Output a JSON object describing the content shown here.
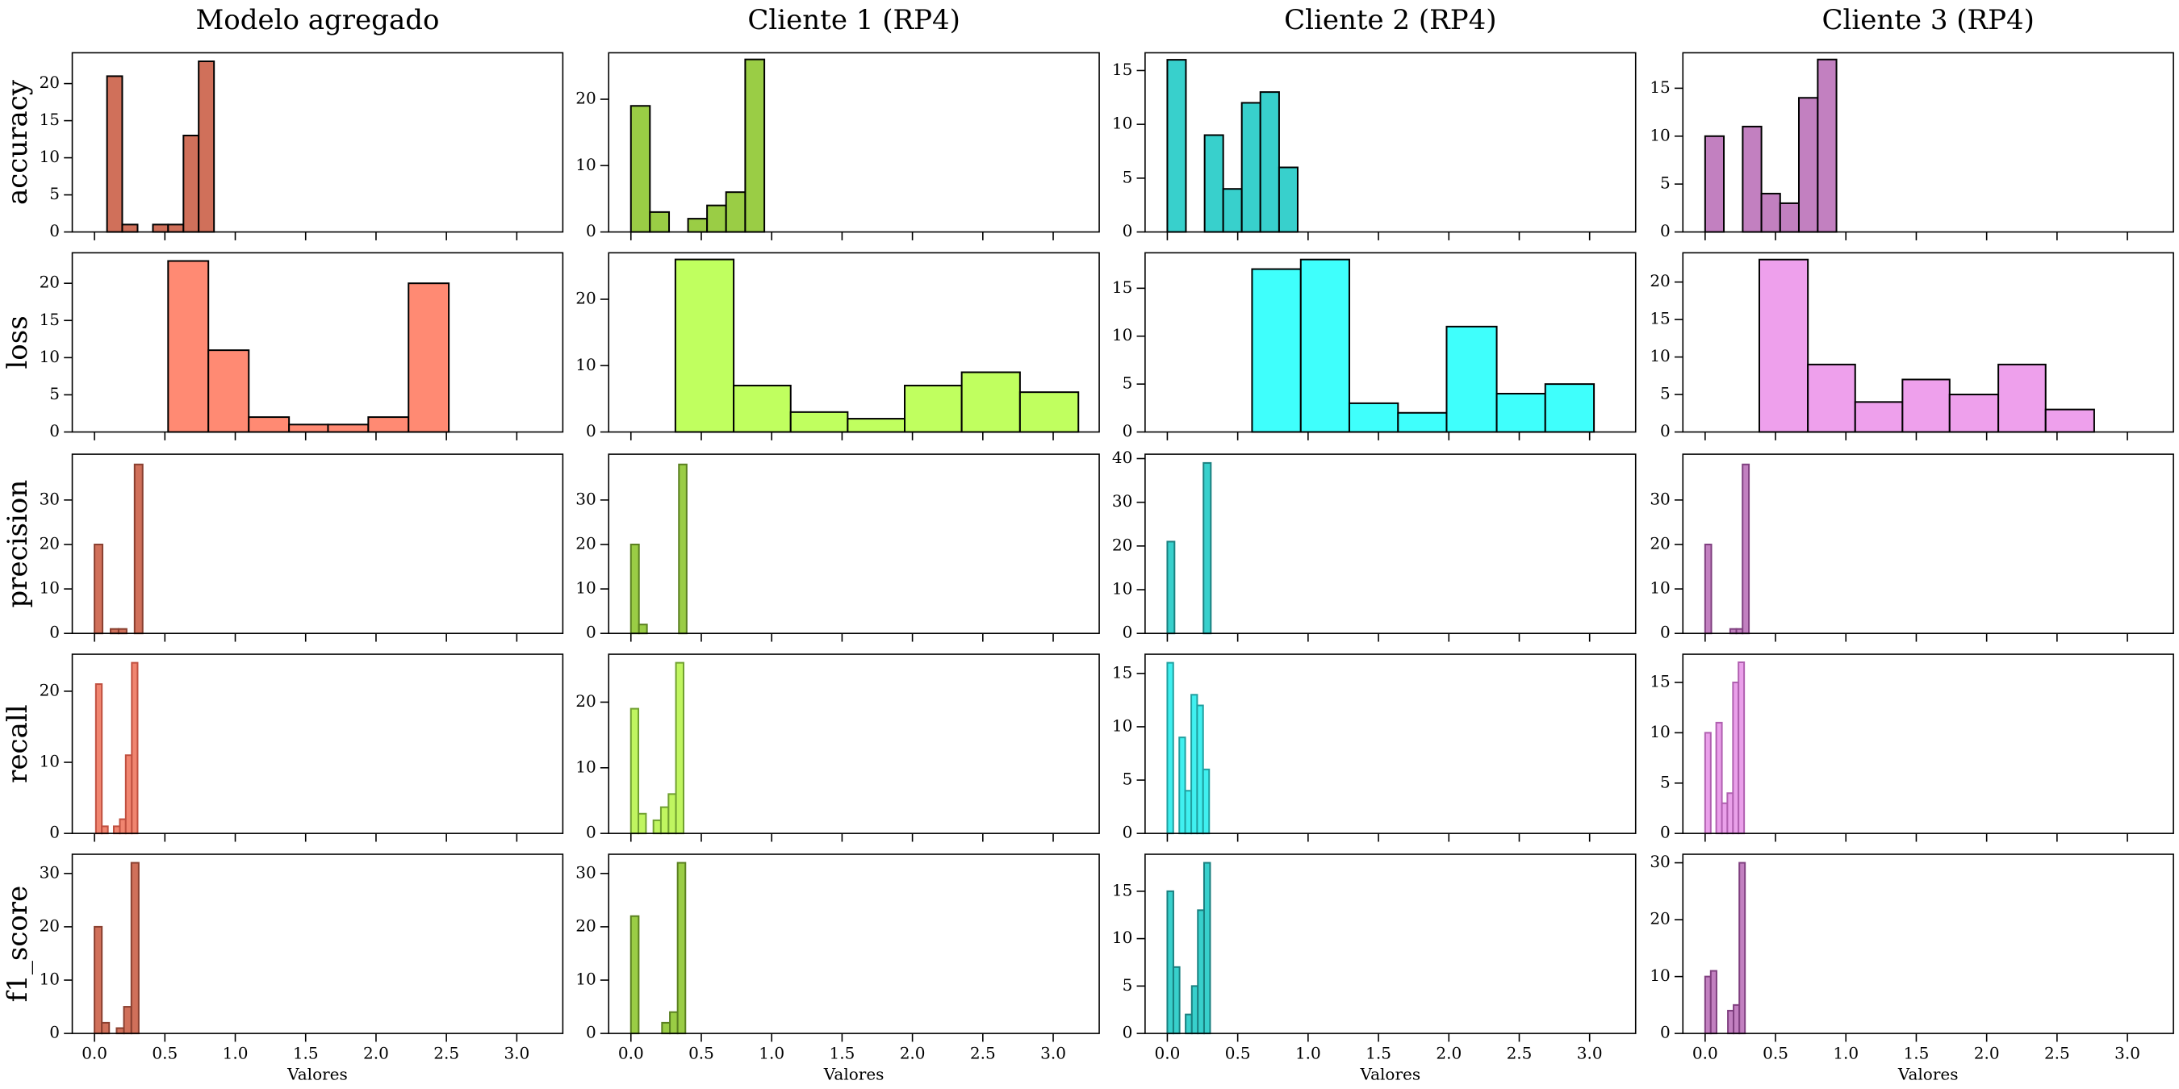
{
  "chart_data": [
    {
      "type": "histogram",
      "title": "Modelo agregado",
      "ylabel": "accuracy",
      "bins": [
        0.089,
        0.197,
        0.306,
        0.415,
        0.523,
        0.632,
        0.74,
        0.849
      ],
      "values": [
        21,
        1,
        0,
        1,
        1,
        13,
        23
      ],
      "color": "#d0705a",
      "edgecolor": "#000000",
      "xlim": [
        -0.158,
        3.327
      ],
      "ylim": [
        0,
        24.15
      ],
      "yticks": [
        0,
        5,
        10,
        15,
        20
      ]
    },
    {
      "type": "histogram",
      "title": "Cliente 1 (RP4)",
      "bins": [
        0,
        0.135,
        0.271,
        0.406,
        0.541,
        0.676,
        0.812,
        0.948
      ],
      "values": [
        19,
        3,
        0,
        2,
        4,
        6,
        26
      ],
      "color": "#9acd45",
      "edgecolor": "#000000",
      "xlim": [
        -0.158,
        3.327
      ],
      "ylim": [
        0,
        27.0
      ],
      "yticks": [
        0,
        10,
        20
      ]
    },
    {
      "type": "histogram",
      "title": "Cliente 2 (RP4)",
      "bins": [
        0,
        0.132,
        0.265,
        0.397,
        0.529,
        0.661,
        0.794,
        0.926
      ],
      "values": [
        16,
        0,
        9,
        4,
        12,
        13,
        6
      ],
      "color": "#38d0cc",
      "edgecolor": "#000000",
      "xlim": [
        -0.158,
        3.327
      ],
      "ylim": [
        0,
        16.65
      ],
      "yticks": [
        0,
        5,
        10,
        15
      ]
    },
    {
      "type": "histogram",
      "title": "Cliente 3 (RP4)",
      "bins": [
        0,
        0.133,
        0.267,
        0.4,
        0.533,
        0.666,
        0.8,
        0.933
      ],
      "values": [
        10,
        0,
        11,
        4,
        3,
        14,
        18
      ],
      "color": "#c280c0",
      "edgecolor": "#000000",
      "xlim": [
        -0.158,
        3.327
      ],
      "ylim": [
        0,
        18.7
      ],
      "yticks": [
        0,
        5,
        10,
        15
      ]
    },
    {
      "type": "histogram",
      "ylabel": "loss",
      "bins": [
        0.523,
        0.809,
        1.096,
        1.382,
        1.659,
        1.945,
        2.231,
        2.517
      ],
      "values": [
        23,
        11,
        2,
        1,
        1,
        2,
        20
      ],
      "color": "#ff8a73",
      "edgecolor": "#000000",
      "xlim": [
        -0.158,
        3.327
      ],
      "ylim": [
        0,
        24.1
      ],
      "yticks": [
        0,
        5,
        10,
        15,
        20
      ]
    },
    {
      "type": "histogram",
      "bins": [
        0.316,
        0.73,
        1.135,
        1.54,
        1.945,
        2.35,
        2.764,
        3.179
      ],
      "values": [
        26,
        7,
        3,
        2,
        7,
        9,
        6
      ],
      "color": "#c0ff5f",
      "edgecolor": "#000000",
      "xlim": [
        -0.158,
        3.327
      ],
      "ylim": [
        0,
        27.0
      ],
      "yticks": [
        0,
        10,
        20
      ]
    },
    {
      "type": "histogram",
      "bins": [
        0.602,
        0.948,
        1.293,
        1.639,
        1.984,
        2.34,
        2.685,
        3.031
      ],
      "values": [
        17,
        18,
        3,
        2,
        11,
        4,
        5
      ],
      "color": "#3ffffc",
      "edgecolor": "#000000",
      "xlim": [
        -0.158,
        3.327
      ],
      "ylim": [
        0,
        18.7
      ],
      "yticks": [
        0,
        5,
        10,
        15
      ]
    },
    {
      "type": "histogram",
      "bins": [
        0.385,
        0.73,
        1.066,
        1.402,
        1.737,
        2.083,
        2.419,
        2.764
      ],
      "values": [
        23,
        9,
        4,
        7,
        5,
        9,
        3
      ],
      "color": "#eea0ec",
      "edgecolor": "#000000",
      "xlim": [
        -0.158,
        3.327
      ],
      "ylim": [
        0,
        23.9
      ],
      "yticks": [
        0,
        5,
        10,
        15,
        20
      ]
    },
    {
      "type": "histogram",
      "ylabel": "precision",
      "bins": [
        0,
        0.057,
        0.114,
        0.171,
        0.228,
        0.285,
        0.342
      ],
      "values": [
        20,
        0,
        1,
        1,
        0,
        38
      ],
      "color": "#d0705a",
      "edgecolor": "#8a4030",
      "xlim": [
        -0.158,
        3.327
      ],
      "ylim": [
        0,
        40.3
      ],
      "yticks": [
        0,
        10,
        20,
        30
      ]
    },
    {
      "type": "histogram",
      "bins": [
        0,
        0.057,
        0.114,
        0.17,
        0.227,
        0.284,
        0.341,
        0.396
      ],
      "values": [
        20,
        2,
        0,
        0,
        0,
        0,
        38
      ],
      "color": "#9acd45",
      "edgecolor": "#5a8020",
      "xlim": [
        -0.158,
        3.327
      ],
      "ylim": [
        0,
        40.3
      ],
      "yticks": [
        0,
        10,
        20,
        30
      ]
    },
    {
      "type": "histogram",
      "bins": [
        0,
        0.051,
        0.103,
        0.154,
        0.206,
        0.257,
        0.309
      ],
      "values": [
        21,
        0,
        0,
        0,
        0,
        39
      ],
      "color": "#38d0cc",
      "edgecolor": "#1a8080",
      "xlim": [
        -0.158,
        3.327
      ],
      "ylim": [
        0,
        41.0
      ],
      "yticks": [
        0,
        10,
        20,
        30,
        40
      ]
    },
    {
      "type": "histogram",
      "bins": [
        0,
        0.044,
        0.089,
        0.133,
        0.178,
        0.222,
        0.266,
        0.311
      ],
      "values": [
        20,
        0,
        0,
        0,
        1,
        1,
        38
      ],
      "color": "#c280c0",
      "edgecolor": "#804080",
      "xlim": [
        -0.158,
        3.327
      ],
      "ylim": [
        0,
        40.3
      ],
      "yticks": [
        0,
        10,
        20,
        30
      ]
    },
    {
      "type": "histogram",
      "ylabel": "recall",
      "bins": [
        0.01,
        0.052,
        0.095,
        0.137,
        0.18,
        0.222,
        0.265,
        0.306
      ],
      "values": [
        21,
        1,
        0,
        1,
        2,
        11,
        24
      ],
      "color": "#f08570",
      "edgecolor": "#c05040",
      "xlim": [
        -0.158,
        3.327
      ],
      "ylim": [
        0,
        25.2
      ],
      "yticks": [
        0,
        10,
        20
      ]
    },
    {
      "type": "histogram",
      "bins": [
        0,
        0.053,
        0.107,
        0.16,
        0.213,
        0.267,
        0.32,
        0.374
      ],
      "values": [
        19,
        3,
        0,
        2,
        4,
        6,
        26
      ],
      "color": "#c0f560",
      "edgecolor": "#70a030",
      "xlim": [
        -0.158,
        3.327
      ],
      "ylim": [
        0,
        27.3
      ],
      "yticks": [
        0,
        10,
        20
      ]
    },
    {
      "type": "histogram",
      "bins": [
        0,
        0.042,
        0.085,
        0.127,
        0.17,
        0.212,
        0.254,
        0.297
      ],
      "values": [
        16,
        0,
        9,
        4,
        13,
        12,
        6
      ],
      "color": "#40f0f0",
      "edgecolor": "#20a0a0",
      "xlim": [
        -0.158,
        3.327
      ],
      "ylim": [
        0,
        16.8
      ],
      "yticks": [
        0,
        5,
        10,
        15
      ]
    },
    {
      "type": "histogram",
      "bins": [
        0,
        0.04,
        0.079,
        0.119,
        0.158,
        0.198,
        0.237,
        0.277
      ],
      "values": [
        10,
        0,
        11,
        3,
        4,
        15,
        17
      ],
      "color": "#eaa0ea",
      "edgecolor": "#b060b0",
      "xlim": [
        -0.158,
        3.327
      ],
      "ylim": [
        0,
        17.8
      ],
      "yticks": [
        0,
        5,
        10,
        15
      ]
    },
    {
      "type": "histogram",
      "ylabel": "f1_score",
      "xlabel": "Valores",
      "bins": [
        0,
        0.052,
        0.104,
        0.157,
        0.209,
        0.262,
        0.314
      ],
      "values": [
        20,
        2,
        0,
        1,
        5,
        32
      ],
      "color": "#d0705a",
      "edgecolor": "#8a4030",
      "xlim": [
        -0.158,
        3.327
      ],
      "ylim": [
        0,
        33.6
      ],
      "yticks": [
        0,
        10,
        20,
        30
      ],
      "xticks": [
        {
          "value": 0,
          "label": "0.0"
        },
        0.5,
        {
          "value": 1,
          "label": "1.0"
        },
        1.5,
        {
          "value": 2,
          "label": "2.0"
        },
        2.5,
        {
          "value": 3,
          "label": "3.0"
        }
      ]
    },
    {
      "type": "histogram",
      "xlabel": "Valores",
      "bins": [
        0,
        0.055,
        0.111,
        0.166,
        0.221,
        0.277,
        0.332,
        0.387
      ],
      "values": [
        22,
        0,
        0,
        0,
        2,
        4,
        32
      ],
      "color": "#9acd45",
      "edgecolor": "#5a8020",
      "xlim": [
        -0.158,
        3.327
      ],
      "ylim": [
        0,
        33.6
      ],
      "yticks": [
        0,
        10,
        20,
        30
      ],
      "xticks": [
        {
          "value": 0,
          "label": "0.0"
        },
        0.5,
        {
          "value": 1,
          "label": "1.0"
        },
        1.5,
        {
          "value": 2,
          "label": "2.0"
        },
        2.5,
        {
          "value": 3,
          "label": "3.0"
        }
      ]
    },
    {
      "type": "histogram",
      "xlabel": "Valores",
      "bins": [
        0,
        0.043,
        0.087,
        0.13,
        0.174,
        0.217,
        0.261,
        0.304
      ],
      "values": [
        15,
        7,
        0,
        2,
        5,
        13,
        18
      ],
      "color": "#38d0cc",
      "edgecolor": "#1a8080",
      "xlim": [
        -0.158,
        3.327
      ],
      "ylim": [
        0,
        18.9
      ],
      "yticks": [
        0,
        5,
        10,
        15
      ],
      "xticks": [
        {
          "value": 0,
          "label": "0.0"
        },
        0.5,
        {
          "value": 1,
          "label": "1.0"
        },
        1.5,
        {
          "value": 2,
          "label": "2.0"
        },
        2.5,
        {
          "value": 3,
          "label": "3.0"
        }
      ]
    },
    {
      "type": "histogram",
      "xlabel": "Valores",
      "bins": [
        0,
        0.04,
        0.081,
        0.121,
        0.162,
        0.202,
        0.243,
        0.283
      ],
      "values": [
        10,
        11,
        0,
        0,
        4,
        5,
        30
      ],
      "color": "#c280c0",
      "edgecolor": "#804080",
      "xlim": [
        -0.158,
        3.327
      ],
      "ylim": [
        0,
        31.5
      ],
      "yticks": [
        0,
        10,
        20,
        30
      ],
      "xticks": [
        {
          "value": 0,
          "label": "0.0"
        },
        0.5,
        {
          "value": 1,
          "label": "1.0"
        },
        1.5,
        {
          "value": 2,
          "label": "2.0"
        },
        2.5,
        {
          "value": 3,
          "label": "3.0"
        }
      ]
    }
  ]
}
